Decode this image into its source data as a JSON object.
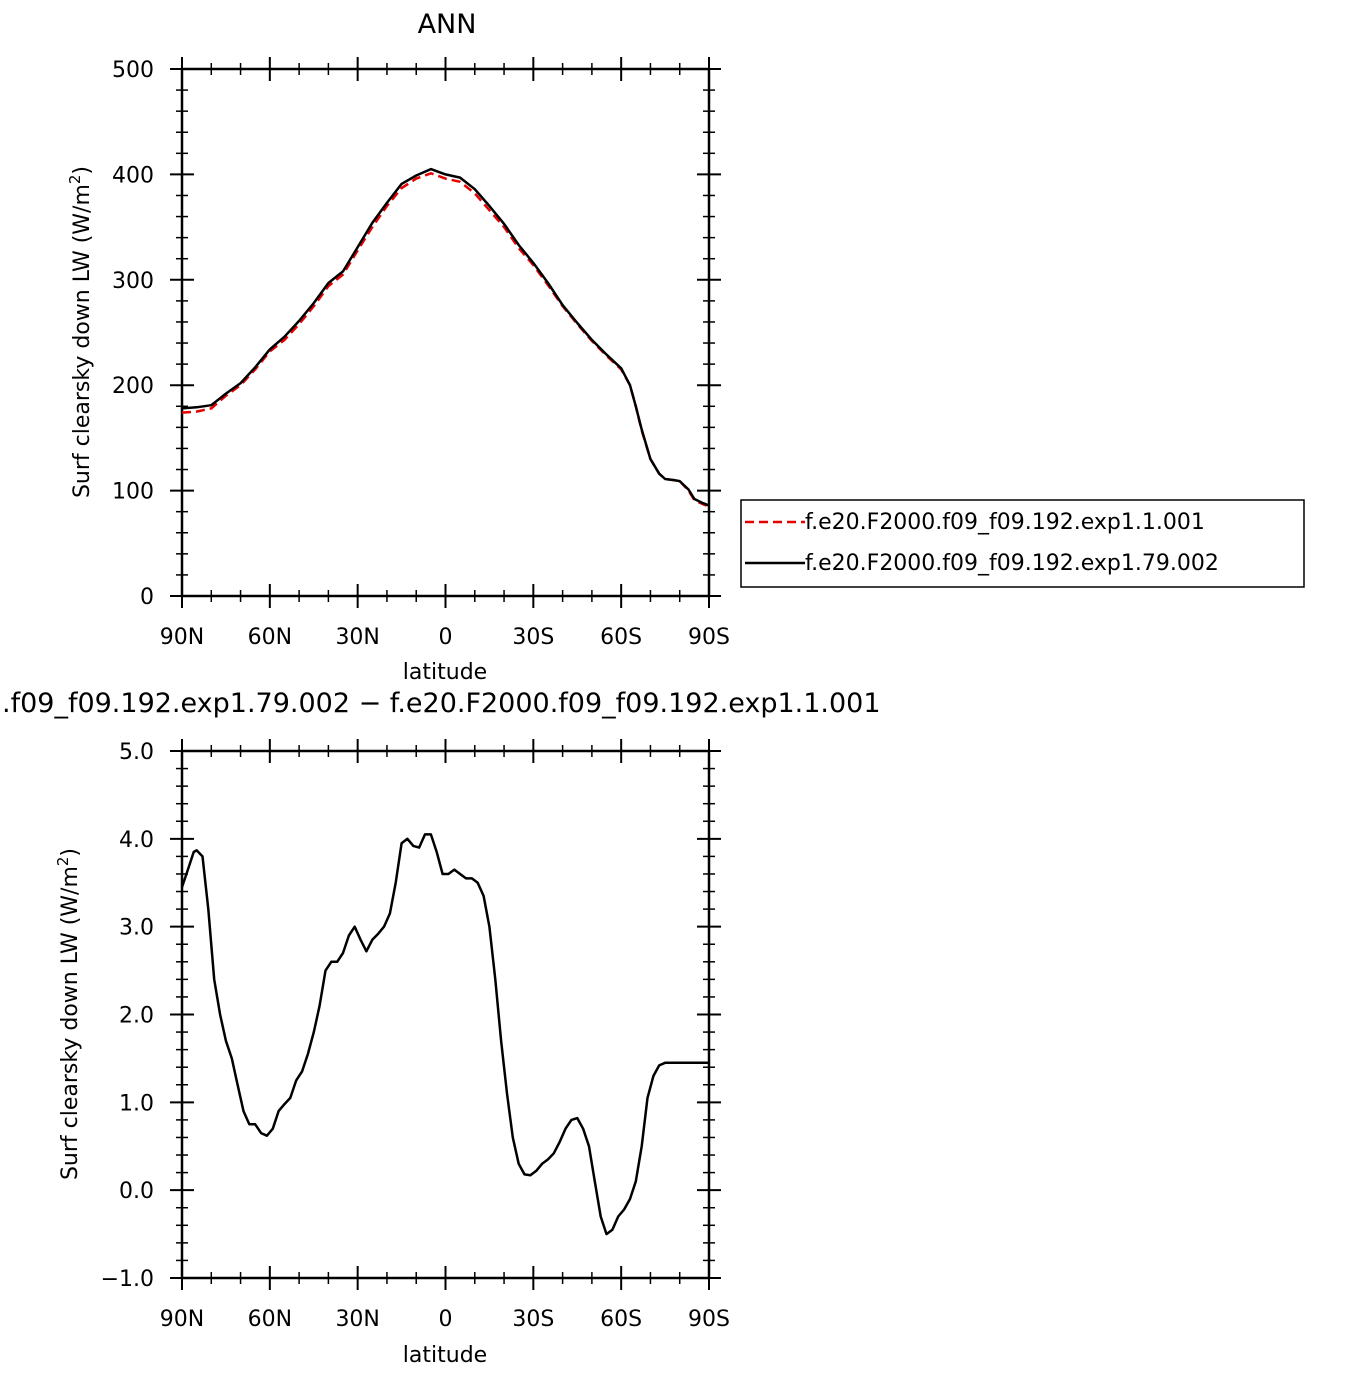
{
  "chart_data": [
    {
      "type": "line",
      "title": "ANN",
      "xlabel": "latitude",
      "ylabel": "Surf clearsky down LW (W/m²)",
      "ylabel_main": "Surf clearsky down LW (W/m",
      "ylabel_sup": "2",
      "ylabel_close": ")",
      "xlim": [
        90,
        -90
      ],
      "ylim": [
        0,
        500
      ],
      "x_ticks": [
        90,
        60,
        30,
        0,
        -30,
        -60,
        -90
      ],
      "x_tick_labels": [
        "90N",
        "60N",
        "30N",
        "0",
        "30S",
        "60S",
        "90S"
      ],
      "y_ticks": [
        0,
        100,
        200,
        300,
        400,
        500
      ],
      "y_tick_labels": [
        "0",
        "100",
        "200",
        "300",
        "400",
        "500"
      ],
      "legend_position": "right-outside",
      "series": [
        {
          "name": "f.e20.F2000.f09_f09.192.exp1.1.001",
          "color": "#e60000",
          "dash": "dashed",
          "x": [
            90,
            85,
            80,
            75,
            70,
            65,
            60,
            55,
            50,
            45,
            40,
            35,
            30,
            25,
            20,
            15,
            10,
            5,
            0,
            -5,
            -10,
            -15,
            -20,
            -25,
            -30,
            -35,
            -40,
            -45,
            -50,
            -55,
            -60,
            -63,
            -65,
            -67,
            -70,
            -73,
            -75,
            -78,
            -80,
            -83,
            -85,
            -88,
            -90
          ],
          "y": [
            174,
            175,
            178,
            190,
            200,
            215,
            232,
            243,
            258,
            275,
            294,
            305,
            328,
            350,
            370,
            387,
            396,
            401,
            396,
            393,
            382,
            366,
            350,
            330,
            314,
            295,
            275,
            258,
            242,
            228,
            215,
            200,
            180,
            157,
            130,
            116,
            111,
            110,
            109,
            100,
            91,
            87,
            85
          ]
        },
        {
          "name": "f.e20.F2000.f09_f09.192.exp1.79.002",
          "color": "#000000",
          "dash": "solid",
          "x": [
            90,
            85,
            80,
            75,
            70,
            65,
            60,
            55,
            50,
            45,
            40,
            35,
            30,
            25,
            20,
            15,
            10,
            5,
            0,
            -5,
            -10,
            -15,
            -20,
            -25,
            -30,
            -35,
            -40,
            -45,
            -50,
            -55,
            -60,
            -63,
            -65,
            -67,
            -70,
            -73,
            -75,
            -78,
            -80,
            -83,
            -85,
            -88,
            -90
          ],
          "y": [
            178,
            179,
            181,
            192,
            202,
            217,
            234,
            246,
            261,
            278,
            297,
            308,
            331,
            354,
            373,
            391,
            399,
            405,
            400,
            397,
            386,
            370,
            353,
            333,
            316,
            297,
            276,
            259,
            243,
            229,
            216,
            200,
            180,
            158,
            130,
            116,
            111,
            110,
            109,
            101,
            92,
            88,
            86
          ]
        }
      ]
    },
    {
      "type": "line",
      "title": ".f09_f09.192.exp1.79.002 − f.e20.F2000.f09_f09.192.exp1.1.001",
      "xlabel": "latitude",
      "ylabel": "Surf clearsky down LW (W/m²)",
      "ylabel_main": "Surf clearsky down LW (W/m",
      "ylabel_sup": "2",
      "ylabel_close": ")",
      "xlim": [
        90,
        -90
      ],
      "ylim": [
        -1,
        5
      ],
      "x_ticks": [
        90,
        60,
        30,
        0,
        -30,
        -60,
        -90
      ],
      "x_tick_labels": [
        "90N",
        "60N",
        "30N",
        "0",
        "30S",
        "60S",
        "90S"
      ],
      "y_ticks": [
        -1,
        0,
        1,
        2,
        3,
        4,
        5
      ],
      "y_tick_labels": [
        "−1.0",
        "0.0",
        "1.0",
        "2.0",
        "3.0",
        "4.0",
        "5.0"
      ],
      "series": [
        {
          "color": "#000000",
          "dash": "solid",
          "x": [
            90,
            88,
            86,
            85,
            83,
            81,
            79,
            77,
            75,
            73,
            71,
            69,
            67,
            65,
            63,
            61,
            59,
            57,
            55,
            53,
            51,
            49,
            47,
            45,
            43,
            41,
            39,
            37,
            35,
            33,
            31,
            29,
            27,
            25,
            23,
            21,
            19,
            17,
            15,
            13,
            11,
            9,
            7,
            5,
            3,
            1,
            -1,
            -3,
            -5,
            -7,
            -9,
            -11,
            -13,
            -15,
            -17,
            -19,
            -21,
            -23,
            -25,
            -27,
            -29,
            -31,
            -33,
            -35,
            -37,
            -39,
            -41,
            -43,
            -45,
            -47,
            -49,
            -51,
            -53,
            -55,
            -57,
            -59,
            -61,
            -63,
            -65,
            -67,
            -69,
            -71,
            -73,
            -75,
            -77,
            -79,
            -81,
            -83,
            -85,
            -87,
            -89,
            -90
          ],
          "y": [
            3.45,
            3.65,
            3.85,
            3.87,
            3.8,
            3.2,
            2.4,
            2.0,
            1.7,
            1.5,
            1.2,
            0.9,
            0.75,
            0.75,
            0.65,
            0.62,
            0.7,
            0.9,
            0.98,
            1.05,
            1.25,
            1.35,
            1.55,
            1.8,
            2.1,
            2.5,
            2.6,
            2.6,
            2.7,
            2.9,
            3.0,
            2.85,
            2.72,
            2.85,
            2.92,
            3.0,
            3.15,
            3.5,
            3.95,
            4.0,
            3.92,
            3.9,
            4.05,
            4.05,
            3.85,
            3.6,
            3.6,
            3.65,
            3.6,
            3.55,
            3.55,
            3.5,
            3.35,
            3.0,
            2.4,
            1.7,
            1.1,
            0.6,
            0.3,
            0.18,
            0.17,
            0.22,
            0.3,
            0.35,
            0.42,
            0.55,
            0.7,
            0.8,
            0.82,
            0.7,
            0.5,
            0.1,
            -0.3,
            -0.5,
            -0.45,
            -0.3,
            -0.22,
            -0.1,
            0.1,
            0.5,
            1.05,
            1.3,
            1.42,
            1.45,
            1.45,
            1.45,
            1.45,
            1.45,
            1.45,
            1.45,
            1.45,
            1.45
          ]
        }
      ]
    }
  ]
}
